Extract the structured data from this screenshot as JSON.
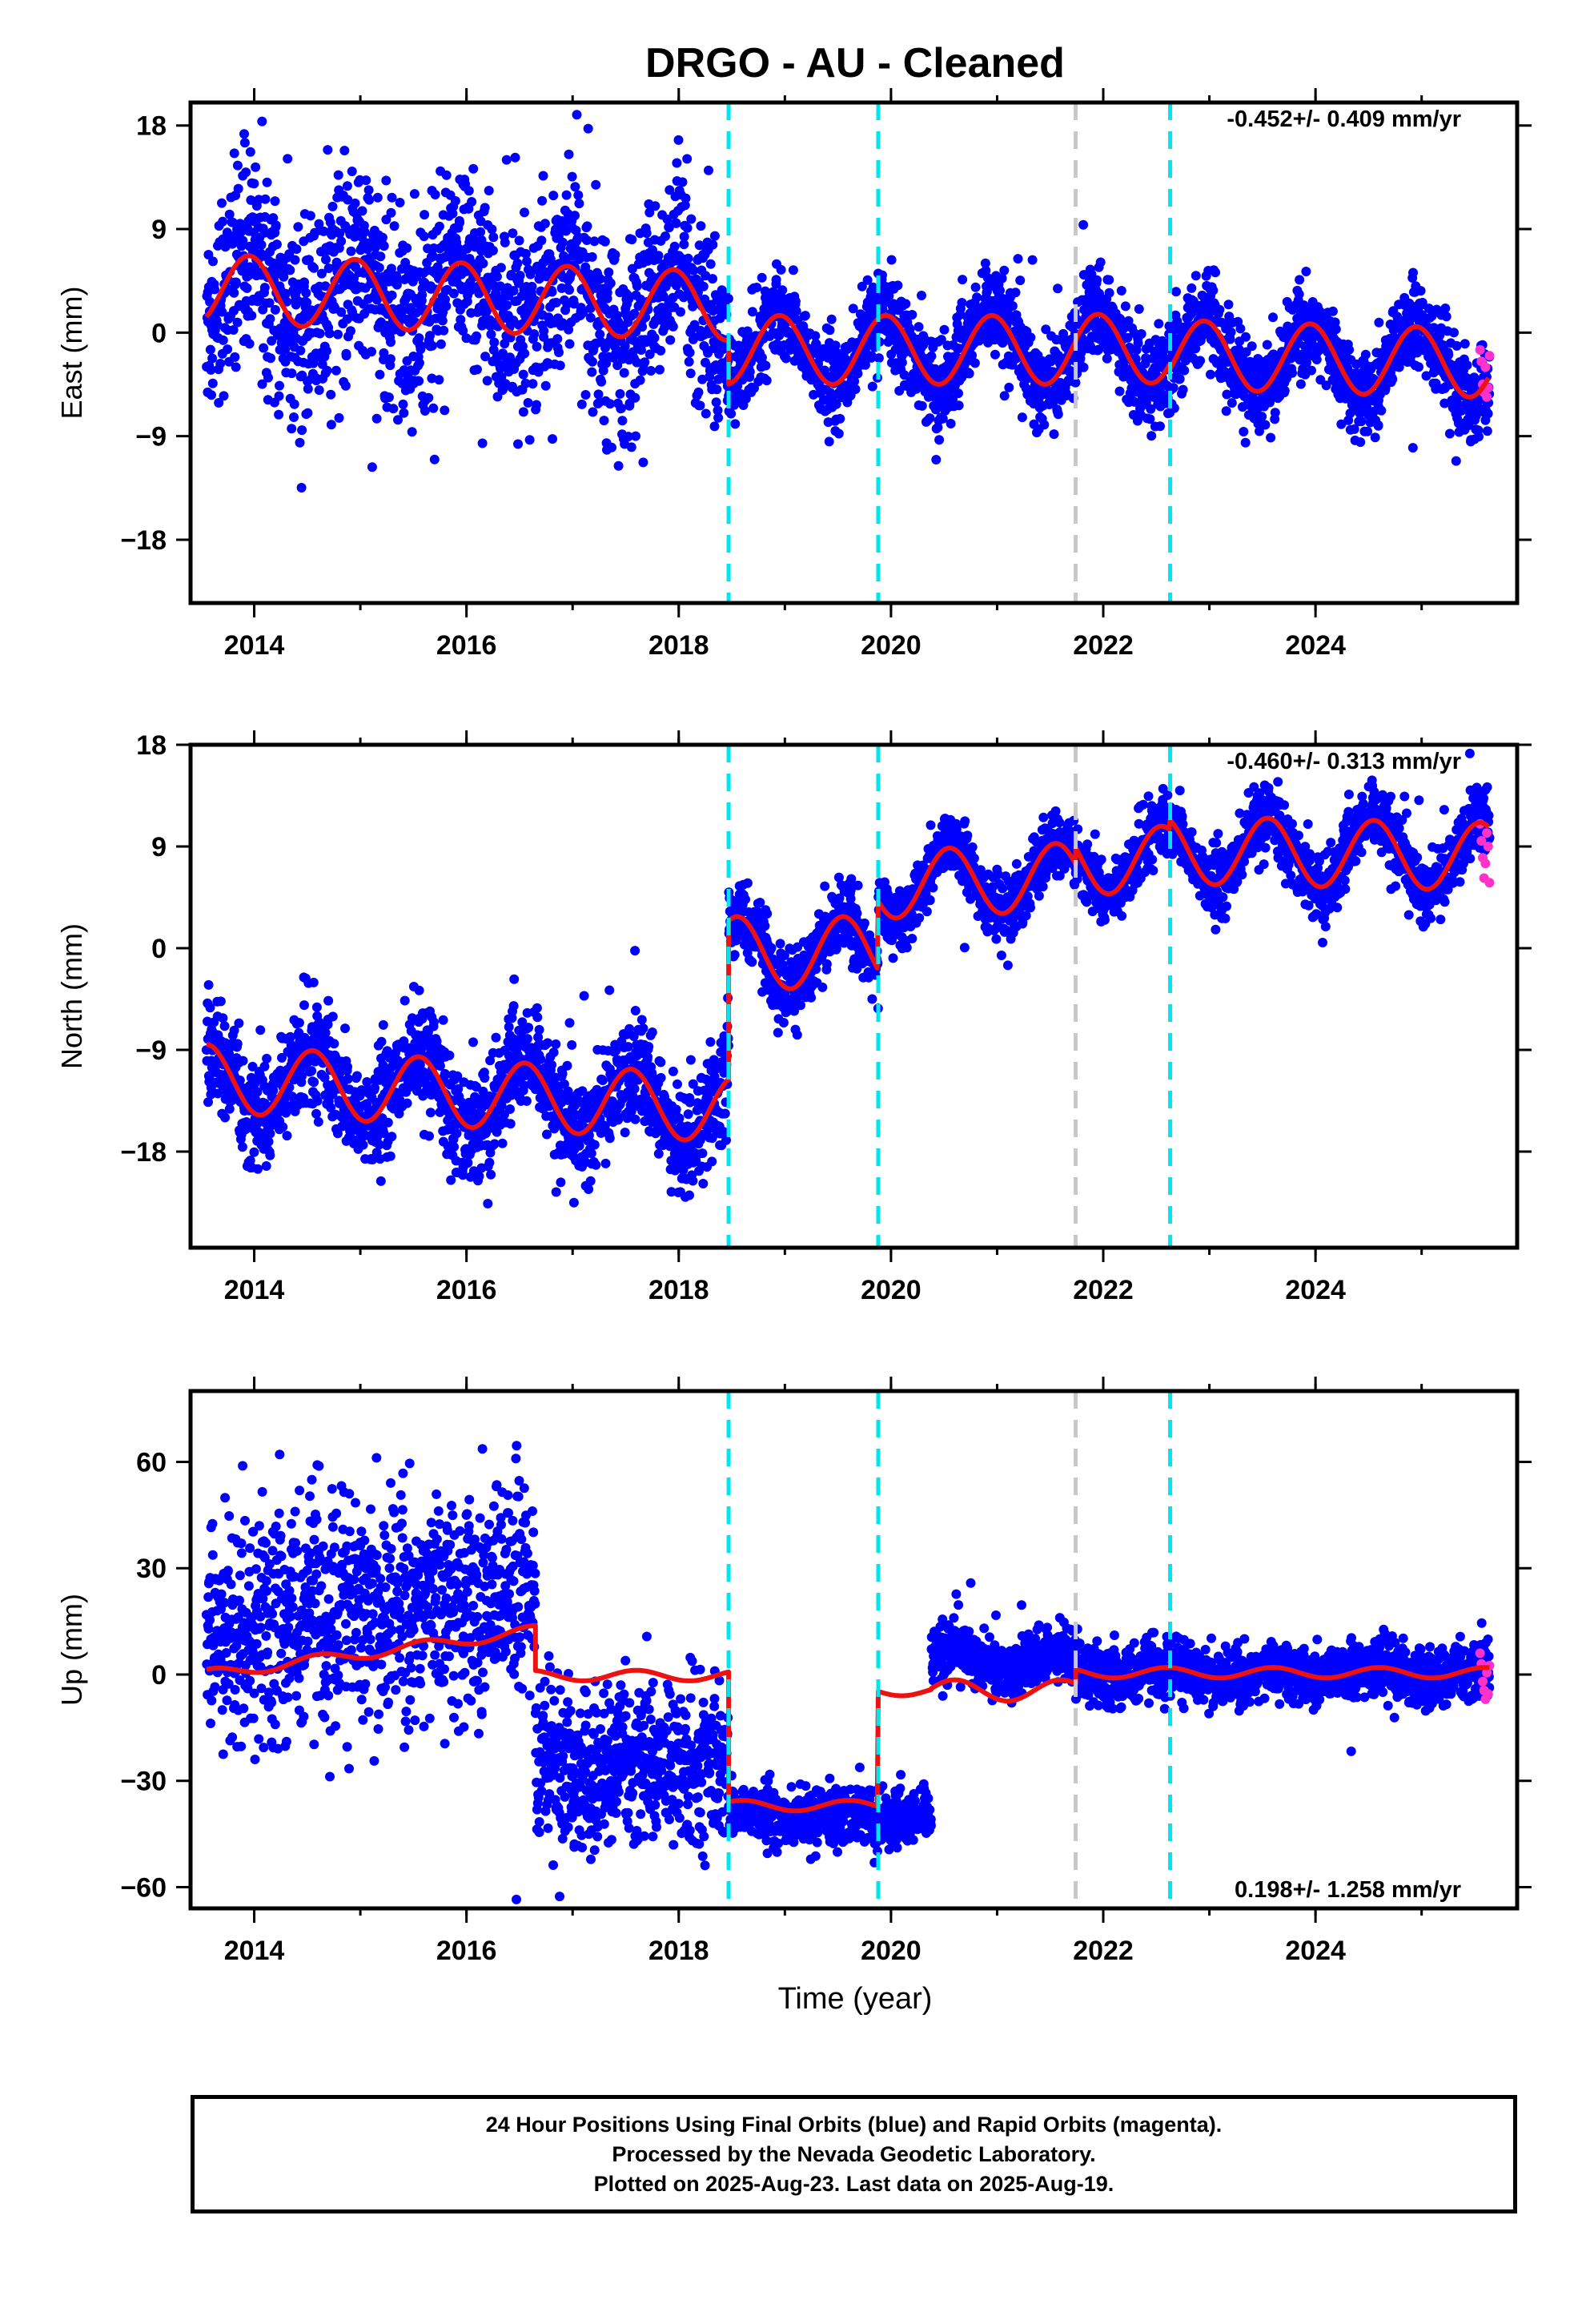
{
  "title": "DRGO  - AU - Cleaned",
  "x_axis_title": "Time (year)",
  "colors": {
    "final_orbits": "#0000ff",
    "rapid_orbits": "#ff33cc",
    "model": "#ee1111",
    "antenna_change": "#00e5ee",
    "equipment_change": "#c8c8c8"
  },
  "footer": {
    "line1": "24 Hour Positions Using Final Orbits (blue) and Rapid Orbits (magenta).",
    "line2": "Processed by the Nevada Geodetic Laboratory.",
    "line3": "Plotted on 2025-Aug-23. Last data on 2025-Aug-19."
  },
  "chart_data": [
    {
      "type": "scatter",
      "panel": "east",
      "ylabel": "East (mm)",
      "xlim": [
        2013.4,
        2025.9
      ],
      "ylim": [
        -23.5,
        20
      ],
      "xticks": [
        2014,
        2016,
        2018,
        2020,
        2022,
        2024
      ],
      "xtick_labels": [
        "2014",
        "2016",
        "2018",
        "2020",
        "2022",
        "2024"
      ],
      "yticks": [
        18,
        9,
        0,
        -9,
        -18
      ],
      "ytick_labels": [
        "18",
        "9",
        "0",
        "−9",
        "−18"
      ],
      "rate_label": "-0.452+/- 0.409 mm/yr",
      "rate_position": "top-right",
      "offset_lines": [
        {
          "x": 2018.47,
          "kind": "antenna_change"
        },
        {
          "x": 2019.88,
          "kind": "antenna_change"
        },
        {
          "x": 2021.74,
          "kind": "equipment_change"
        },
        {
          "x": 2022.63,
          "kind": "antenna_change"
        }
      ],
      "segments": [
        {
          "start": 2013.55,
          "end": 2018.47,
          "offset": 3.8,
          "trend": -0.3,
          "amp": 3.0,
          "phase": 2013.95,
          "scatter": 4.2
        },
        {
          "start": 2018.47,
          "end": 2019.88,
          "offset": -1.5,
          "trend": 0,
          "amp": 3.0,
          "phase": 2013.95,
          "scatter": 1.9
        },
        {
          "start": 2019.88,
          "end": 2021.74,
          "offset": -1.5,
          "trend": 0,
          "amp": 3.0,
          "phase": 2013.95,
          "scatter": 2.0
        },
        {
          "start": 2021.74,
          "end": 2022.63,
          "offset": -1.4,
          "trend": 0,
          "amp": 3.0,
          "phase": 2013.95,
          "scatter": 2.0
        },
        {
          "start": 2022.63,
          "end": 2025.64,
          "offset": -1.9,
          "trend": -0.25,
          "amp": 3.0,
          "phase": 2013.95,
          "scatter": 1.9
        }
      ],
      "rapid": {
        "start": 2025.55,
        "end": 2025.64,
        "values": [
          -1.5,
          -2.5,
          -4.5,
          -5.2,
          -3.0,
          -5.6,
          -4.8,
          -2.0
        ]
      }
    },
    {
      "type": "scatter",
      "panel": "north",
      "ylabel": "North (mm)",
      "xlim": [
        2013.4,
        2025.9
      ],
      "ylim": [
        -26.5,
        18
      ],
      "xticks": [
        2014,
        2016,
        2018,
        2020,
        2022,
        2024
      ],
      "xtick_labels": [
        "2014",
        "2016",
        "2018",
        "2020",
        "2022",
        "2024"
      ],
      "yticks": [
        18,
        9,
        0,
        -9,
        -18
      ],
      "ytick_labels": [
        "18",
        "9",
        "0",
        "−9",
        "−18"
      ],
      "rate_label": "-0.460+/- 0.313 mm/yr",
      "rate_position": "top-right",
      "offset_lines": [
        {
          "x": 2018.47,
          "kind": "antenna_change"
        },
        {
          "x": 2019.88,
          "kind": "antenna_change"
        },
        {
          "x": 2021.74,
          "kind": "equipment_change"
        },
        {
          "x": 2022.63,
          "kind": "antenna_change"
        }
      ],
      "segments": [
        {
          "start": 2013.55,
          "end": 2018.47,
          "offset": -11.5,
          "trend": -0.55,
          "amp": 3.0,
          "phase": 2014.55,
          "scatter": 2.4
        },
        {
          "start": 2018.47,
          "end": 2019.88,
          "offset": -0.4,
          "trend": 0,
          "amp": 3.2,
          "phase": 2014.55,
          "scatter": 1.6
        },
        {
          "start": 2019.88,
          "end": 2021.74,
          "offset": 5.6,
          "trend": 0.4,
          "amp": 3.0,
          "phase": 2014.55,
          "scatter": 1.4
        },
        {
          "start": 2021.74,
          "end": 2022.63,
          "offset": 7.8,
          "trend": 0,
          "amp": 3.0,
          "phase": 2014.55,
          "scatter": 1.4
        },
        {
          "start": 2022.63,
          "end": 2025.64,
          "offset": 8.7,
          "trend": -0.2,
          "amp": 3.0,
          "phase": 2014.55,
          "scatter": 1.5
        }
      ],
      "rapid": {
        "start": 2025.55,
        "end": 2025.64,
        "values": [
          11.0,
          9.5,
          8.0,
          6.2,
          7.5,
          10.2,
          9.0,
          5.8
        ]
      }
    },
    {
      "type": "scatter",
      "panel": "up",
      "ylabel": "Up (mm)",
      "xlim": [
        2013.4,
        2025.9
      ],
      "ylim": [
        -66,
        80
      ],
      "xticks": [
        2014,
        2016,
        2018,
        2020,
        2022,
        2024
      ],
      "xtick_labels": [
        "2014",
        "2016",
        "2018",
        "2020",
        "2022",
        "2024"
      ],
      "yticks": [
        60,
        30,
        0,
        -30,
        -60
      ],
      "ytick_labels": [
        "60",
        "30",
        "0",
        "−30",
        "−60"
      ],
      "rate_label": "0.198+/- 1.258 mm/yr",
      "rate_position": "bottom-right",
      "offset_lines": [
        {
          "x": 2018.47,
          "kind": "antenna_change"
        },
        {
          "x": 2019.88,
          "kind": "antenna_change"
        },
        {
          "x": 2021.74,
          "kind": "equipment_change"
        },
        {
          "x": 2022.63,
          "kind": "antenna_change"
        }
      ],
      "segments": [
        {
          "start": 2013.55,
          "end": 2016.65,
          "offset": 12.0,
          "trend": 4.0,
          "amp": 1.5,
          "phase": 2014.6,
          "scatter": 16.0,
          "model_offset": 0.0
        },
        {
          "start": 2016.65,
          "end": 2018.47,
          "offset": -25.0,
          "trend": 0,
          "amp": 1.5,
          "phase": 2014.6,
          "scatter": 11.0,
          "model_offset": -0.3
        },
        {
          "start": 2018.47,
          "end": 2019.88,
          "offset": -40.0,
          "trend": 0,
          "amp": 1.5,
          "phase": 2014.6,
          "scatter": 4.0,
          "model_offset": -37.0
        },
        {
          "start": 2019.88,
          "end": 2020.38,
          "offset": -40.0,
          "trend": 0,
          "amp": 1.5,
          "phase": 2014.6,
          "scatter": 4.0,
          "model_offset": -4.5
        },
        {
          "start": 2020.38,
          "end": 2021.74,
          "offset": 4.0,
          "trend": 0,
          "amp": 3.0,
          "phase": 2014.6,
          "scatter": 4.0,
          "model_offset": -4.5
        },
        {
          "start": 2021.74,
          "end": 2025.64,
          "offset": 0.5,
          "trend": 0,
          "amp": 1.5,
          "phase": 2014.6,
          "scatter": 4.0,
          "model_offset": 0.5
        }
      ],
      "rapid": {
        "start": 2025.55,
        "end": 2025.64,
        "values": [
          6.0,
          3.0,
          -2.0,
          -4.5,
          -7.0,
          0.5,
          -5.5,
          2.5
        ]
      }
    }
  ]
}
